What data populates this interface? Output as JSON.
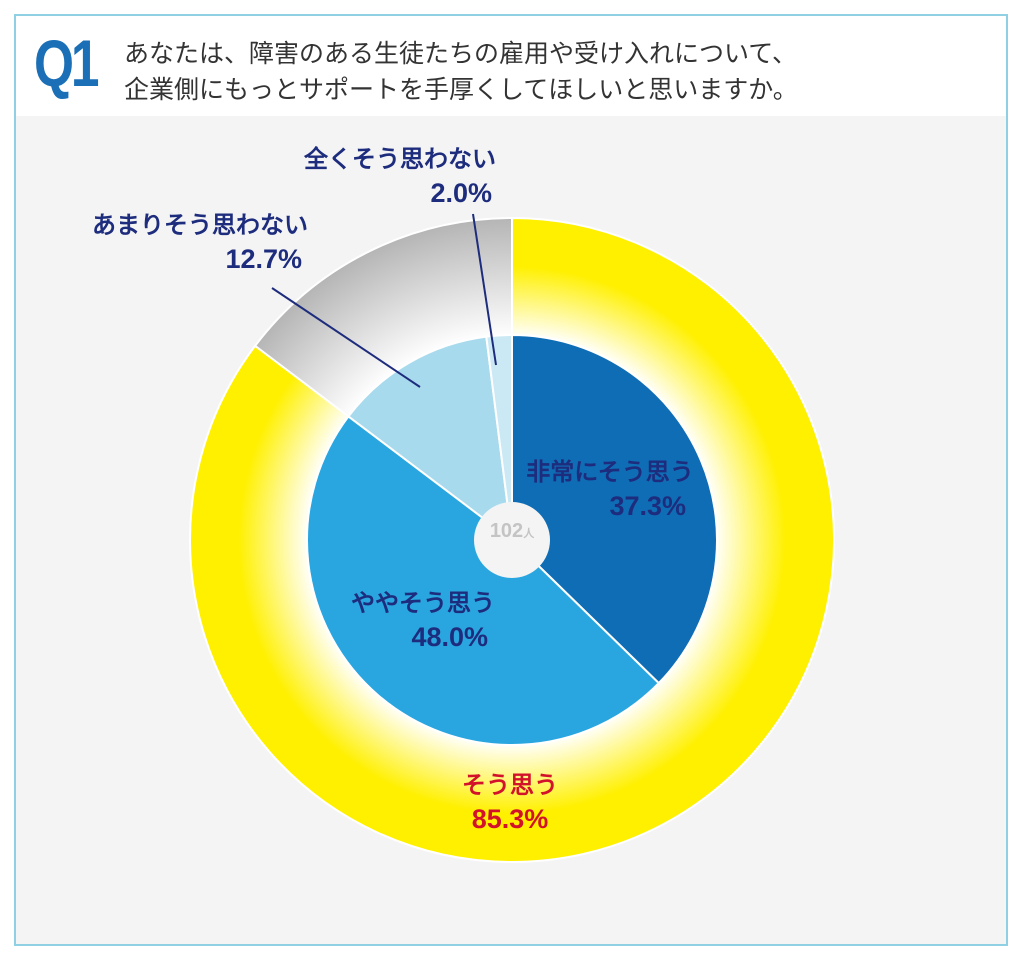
{
  "question": {
    "number": "Q1",
    "text_line1": "あなたは、障害のある生徒たちの雇用や受け入れについて、",
    "text_line2": "企業側にもっとサポートを手厚くしてほしいと思いますか。"
  },
  "chart_data": {
    "type": "pie",
    "subtype": "double donut",
    "total": {
      "value": "102",
      "unit": "人"
    },
    "inner": [
      {
        "name": "非常にそう思う",
        "value": 37.3,
        "label": "37.3%",
        "color": "#0f6db5"
      },
      {
        "name": "ややそう思う",
        "value": 48.0,
        "label": "48.0%",
        "color": "#29a6df"
      },
      {
        "name": "あまりそう思わない",
        "value": 12.7,
        "label": "12.7%",
        "color": "#a8daee"
      },
      {
        "name": "全くそう思わない",
        "value": 2.0,
        "label": "2.0%",
        "color": "#cbe9f4"
      }
    ],
    "outer": [
      {
        "name": "そう思う",
        "value": 85.3,
        "label": "85.3%",
        "color": "#fff000"
      },
      {
        "name": "",
        "value": 14.7,
        "color": "#b9b9b9"
      }
    ]
  }
}
